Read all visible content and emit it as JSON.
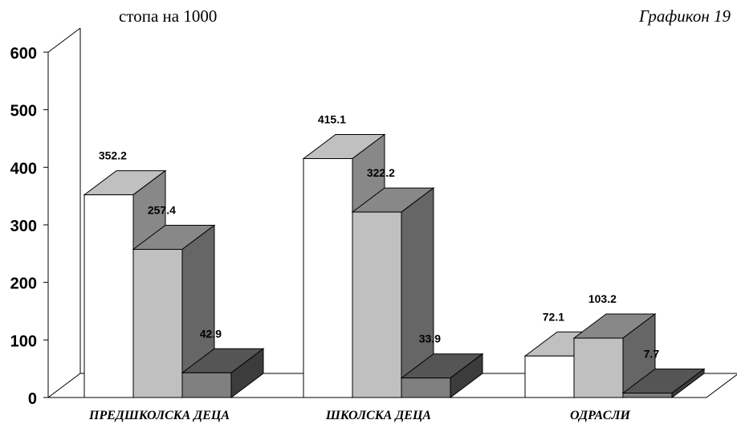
{
  "header": {
    "unit_label": "стопа на 1000",
    "figure_label": "Графикон 19"
  },
  "chart_data": {
    "type": "bar",
    "categories": [
      "ПРЕДШКОЛСКА ДЕЦА",
      "ШКОЛСКА ДЕЦА",
      "ОДРАСЛИ"
    ],
    "series": [
      {
        "values": [
          352.2,
          415.1,
          72.1
        ],
        "front": "#ffffff",
        "top": "#c0c0c0",
        "side": "#888888"
      },
      {
        "values": [
          257.4,
          322.2,
          103.2
        ],
        "front": "#c0c0c0",
        "top": "#888888",
        "side": "#666666"
      },
      {
        "values": [
          42.9,
          33.9,
          7.7
        ],
        "front": "#808080",
        "top": "#555555",
        "side": "#3c3c3c"
      }
    ],
    "yticks": [
      0,
      100,
      200,
      300,
      400,
      500,
      600
    ],
    "ylim": [
      0,
      600
    ],
    "grid": false,
    "legend": "none"
  }
}
